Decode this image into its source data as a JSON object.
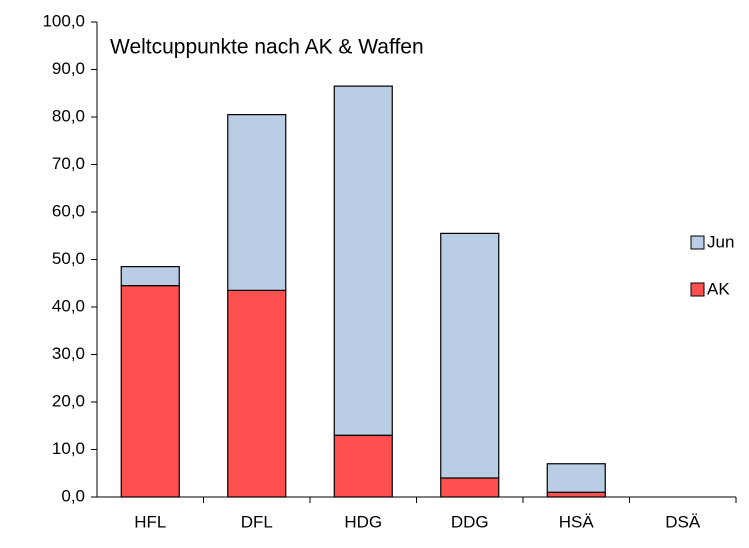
{
  "chart_data": {
    "type": "bar",
    "stacked": true,
    "title": "Weltcuppunkte nach AK & Waffen",
    "categories": [
      "HFL",
      "DFL",
      "HDG",
      "DDG",
      "HSÄ",
      "DSÄ"
    ],
    "series": [
      {
        "name": "AK",
        "color": "#ff5050",
        "values": [
          44.5,
          43.5,
          13,
          4,
          1,
          0
        ]
      },
      {
        "name": "Jun",
        "color": "#b9cde5",
        "values": [
          4,
          37,
          73.5,
          51.5,
          6,
          0
        ]
      }
    ],
    "ylim": [
      0,
      100
    ],
    "yticks": [
      {
        "value": 0,
        "label": "0,0"
      },
      {
        "value": 10,
        "label": "10,0"
      },
      {
        "value": 20,
        "label": "20,0"
      },
      {
        "value": 30,
        "label": "30,0"
      },
      {
        "value": 40,
        "label": "40,0"
      },
      {
        "value": 50,
        "label": "50,0"
      },
      {
        "value": 60,
        "label": "60,0"
      },
      {
        "value": 70,
        "label": "70,0"
      },
      {
        "value": 80,
        "label": "80,0"
      },
      {
        "value": 90,
        "label": "90,0"
      },
      {
        "value": 100,
        "label": "100,0"
      }
    ],
    "grid": false,
    "legend": "right"
  }
}
